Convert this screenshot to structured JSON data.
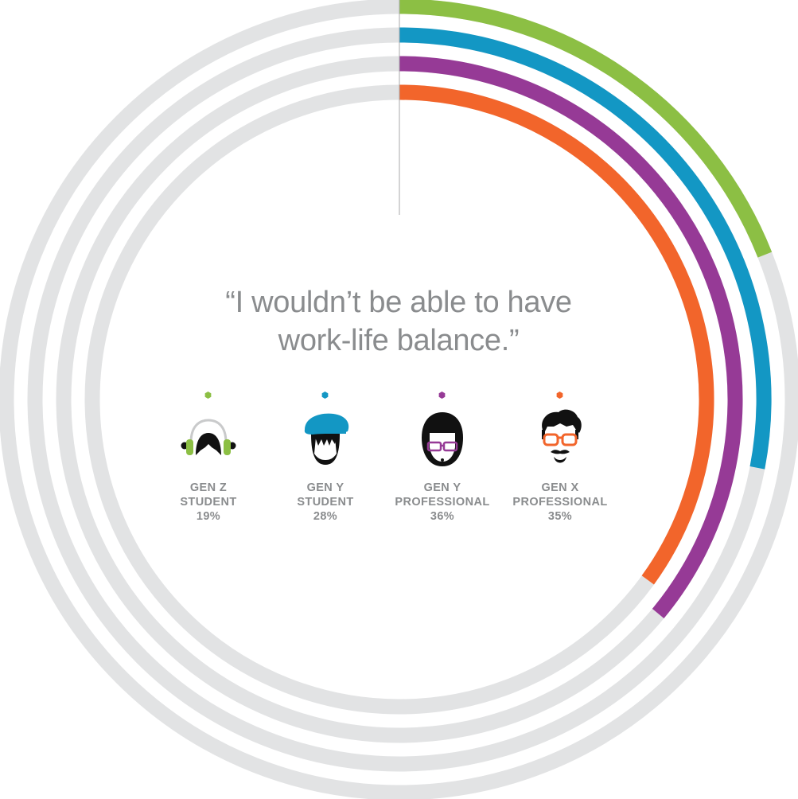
{
  "quote": {
    "line1": "“I wouldn’t be able to have",
    "line2": "work-life balance.”"
  },
  "chart_data": {
    "type": "radial-bar",
    "title": "“I wouldn’t be able to have work-life balance.”",
    "unit": "%",
    "max": 100,
    "track_color": "#e2e3e4",
    "series": [
      {
        "name": "GEN Z STUDENT",
        "line1": "GEN Z",
        "line2": "STUDENT",
        "value": 19,
        "label": "19%",
        "color": "#8cbf44",
        "icon": "headphones-avatar-icon"
      },
      {
        "name": "GEN Y STUDENT",
        "line1": "GEN Y",
        "line2": "STUDENT",
        "value": 28,
        "label": "28%",
        "color": "#1397c4",
        "icon": "beret-avatar-icon"
      },
      {
        "name": "GEN Y PROFESSIONAL",
        "line1": "GEN Y",
        "line2": "PROFESSIONAL",
        "value": 36,
        "label": "36%",
        "color": "#963a96",
        "icon": "glasses-bob-avatar-icon"
      },
      {
        "name": "GEN X PROFESSIONAL",
        "line1": "GEN X",
        "line2": "PROFESSIONAL",
        "value": 35,
        "label": "35%",
        "color": "#f2652b",
        "icon": "bearded-hipster-avatar-icon"
      }
    ]
  }
}
